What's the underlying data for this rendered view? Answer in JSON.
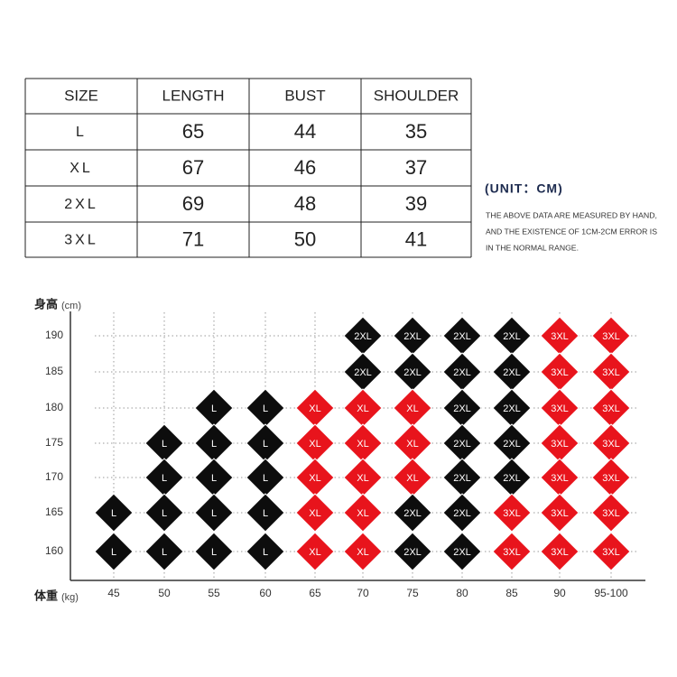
{
  "size_table": {
    "header": [
      "SIZE",
      "LENGTH",
      "BUST",
      "SHOULDER"
    ],
    "rows": [
      [
        "L",
        65,
        44,
        35
      ],
      [
        "XL",
        67,
        46,
        37
      ],
      [
        "2XL",
        69,
        48,
        39
      ],
      [
        "3XL",
        71,
        50,
        41
      ]
    ]
  },
  "note": {
    "unit": "(UNIT：CM)",
    "lines": [
      "THE ABOVE DATA ARE MEASURED BY HAND,",
      "AND THE EXISTENCE OF 1CM-2CM ERROR IS",
      "IN THE NORMAL RANGE."
    ]
  },
  "size_grid": {
    "y_label": "身高",
    "y_unit": "(cm)",
    "x_label": "体重",
    "x_unit": "(kg)",
    "colors": {
      "L": "#0d0d0d",
      "XL": "#e8141c",
      "2XL": "#0d0d0d",
      "3XL": "#e8141c"
    },
    "columns": [
      45,
      50,
      55,
      60,
      65,
      70,
      75,
      80,
      85,
      90,
      "95-100"
    ],
    "rows": [
      {
        "height": 190,
        "cells": [
          null,
          null,
          null,
          null,
          null,
          "2XL",
          "2XL",
          "2XL",
          "2XL",
          "3XL",
          "3XL"
        ]
      },
      {
        "height": 185,
        "cells": [
          null,
          null,
          null,
          null,
          null,
          "2XL",
          "2XL",
          "2XL",
          "2XL",
          "3XL",
          "3XL"
        ]
      },
      {
        "height": 180,
        "cells": [
          null,
          null,
          "L",
          "L",
          "XL",
          "XL",
          "XL",
          "2XL",
          "2XL",
          "3XL",
          "3XL"
        ]
      },
      {
        "height": 175,
        "cells": [
          null,
          "L",
          "L",
          "L",
          "XL",
          "XL",
          "XL",
          "2XL",
          "2XL",
          "3XL",
          "3XL"
        ]
      },
      {
        "height": 170,
        "cells": [
          null,
          "L",
          "L",
          "L",
          "XL",
          "XL",
          "XL",
          "2XL",
          "2XL",
          "3XL",
          "3XL"
        ]
      },
      {
        "height": 165,
        "cells": [
          "L",
          "L",
          "L",
          "L",
          "XL",
          "XL",
          "2XL",
          "2XL",
          "3XL",
          "3XL",
          "3XL"
        ]
      },
      {
        "height": 160,
        "cells": [
          "L",
          "L",
          "L",
          "L",
          "XL",
          "XL",
          "2XL",
          "2XL",
          "3XL",
          "3XL",
          "3XL"
        ]
      }
    ]
  }
}
